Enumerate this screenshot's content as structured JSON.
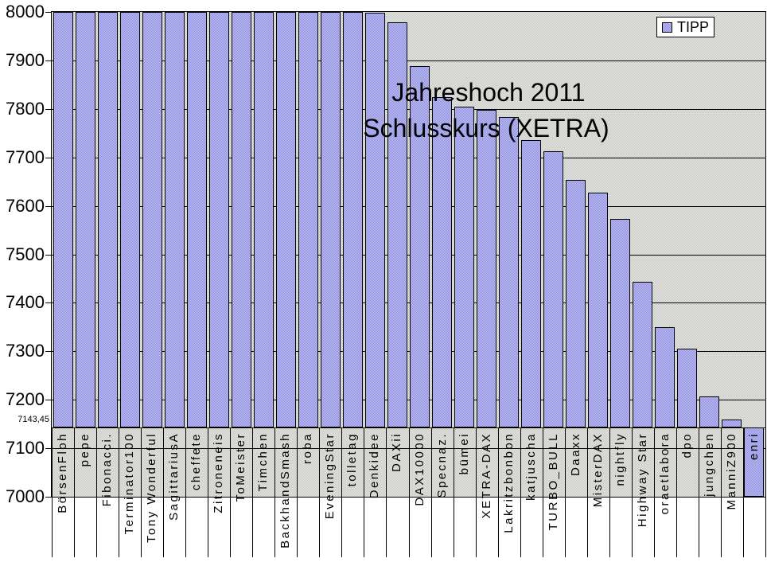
{
  "chart_data": {
    "type": "bar",
    "title_lines": [
      "Jahreshoch 2011",
      "Schlusskurs (XETRA)"
    ],
    "legend_entries": [
      "TIPP"
    ],
    "xlabel": "",
    "ylabel": "",
    "ylim": [
      7000,
      8000
    ],
    "ytick_interval": 100,
    "ytick_labels": [
      "7000",
      "7100",
      "7200",
      "7300",
      "7400",
      "7500",
      "7600",
      "7700",
      "7800",
      "7900",
      "8000"
    ],
    "grid": true,
    "legend_position": "top-right",
    "category_axis_crosses_at": 7143.45,
    "cross_label": "7143,45",
    "categories": [
      "BörsenFloh",
      "pepe",
      "Fibonacci.",
      "Terminator100",
      "Tony Wonderful",
      "SagittariusA",
      "cheffete",
      "Zitroneneis",
      "ToMeister",
      "Timchen",
      "BackhandSmash",
      "roba",
      "EveningStar",
      "tolletag",
      "Denkidee",
      "DAXii",
      "DAX10000",
      "Specnaz.",
      "bümei",
      "XETRA-DAX",
      "Lakritzbonbon",
      "katjuscha",
      "TURBO_BULL",
      "Daaxx",
      "MisterDAX",
      "nightfly",
      "Highway Star",
      "oraetlabora",
      "dpo",
      "jungchen",
      "ManniZ900",
      "enri"
    ],
    "series": [
      {
        "name": "TIPP",
        "values": [
          8000,
          8000,
          8000,
          8000,
          8000,
          8000,
          8000,
          8000,
          8000,
          8000,
          8000,
          8000,
          8000,
          8000,
          7999,
          7978,
          7888,
          7825,
          7805,
          7798,
          7783,
          7735,
          7713,
          7654,
          7628,
          7573,
          7444,
          7350,
          7305,
          7207,
          7160,
          7000
        ]
      }
    ],
    "clipped_at_axis_max": [
      "BörsenFloh",
      "pepe",
      "Fibonacci.",
      "Terminator100",
      "Tony Wonderful",
      "SagittariusA",
      "cheffete",
      "Zitroneneis",
      "ToMeister",
      "Timchen",
      "BackhandSmash",
      "roba",
      "EveningStar",
      "tolletag"
    ],
    "clipped_at_axis_min": [
      "enri"
    ],
    "colors": {
      "bar_fill": "#9999e6",
      "bar_border": "#000000",
      "plot_background": "#d6d6d2",
      "chart_background": "#ffffff",
      "text": "#000000",
      "legend_background": "#ffffff"
    }
  }
}
